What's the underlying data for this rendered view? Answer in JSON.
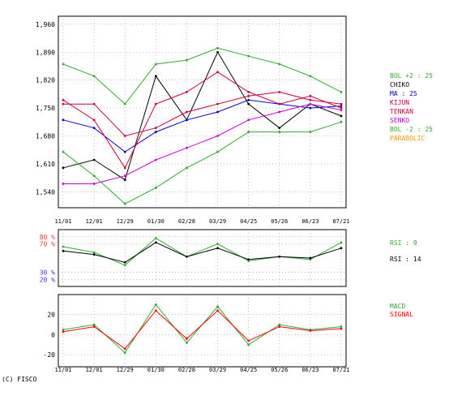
{
  "footer": {
    "copyright": "(C) FISCO"
  },
  "chart_data": [
    {
      "type": "line",
      "panel": "price",
      "ylim": [
        1500,
        1980
      ],
      "yticks": [
        1540,
        1610,
        1680,
        1750,
        1820,
        1890,
        1960
      ],
      "ytick_labels": [
        "1,540",
        "1,610",
        "1,680",
        "1,750",
        "1,820",
        "1,890",
        "1,960"
      ],
      "xtick_labels": [
        "11/01",
        "12/01",
        "12/29",
        "01/30",
        "02/28",
        "03/29",
        "04/25",
        "05/26",
        "06/23",
        "07/21"
      ],
      "grid": true,
      "legend": [
        {
          "label": "BOL +2 : 25",
          "color": "#33aa33"
        },
        {
          "label": "CHIKO",
          "color": "#000000"
        },
        {
          "label": "MA : 25",
          "color": "#0000cc"
        },
        {
          "label": "KIJUN",
          "color": "#cc0033"
        },
        {
          "label": "TENKAN",
          "color": "#cc0033"
        },
        {
          "label": "SENKO",
          "color": "#cc00cc"
        },
        {
          "label": "BOL -2 : 25",
          "color": "#33aa33"
        },
        {
          "label": "PARABOLIC",
          "color": "#ff9900"
        }
      ],
      "x": [
        "11/01",
        "12/01",
        "12/29",
        "01/30",
        "02/28",
        "03/29",
        "04/25",
        "05/26",
        "06/23",
        "07/21"
      ],
      "series": [
        {
          "name": "CHIKO",
          "color": "#000000",
          "values": [
            1600,
            1620,
            1570,
            1830,
            1720,
            1890,
            1760,
            1700,
            1760,
            1730
          ]
        },
        {
          "name": "MA : 25",
          "color": "#0000cc",
          "values": [
            1720,
            1700,
            1640,
            1690,
            1720,
            1740,
            1770,
            1760,
            1750,
            1755
          ]
        },
        {
          "name": "KIJUN",
          "color": "#cc0033",
          "values": [
            1760,
            1760,
            1680,
            1700,
            1740,
            1760,
            1780,
            1790,
            1770,
            1760
          ]
        },
        {
          "name": "TENKAN",
          "color": "#cc0033",
          "values": [
            1770,
            1720,
            1600,
            1760,
            1790,
            1840,
            1790,
            1760,
            1780,
            1750
          ]
        },
        {
          "name": "SENKO",
          "color": "#cc00cc",
          "values": [
            1560,
            1560,
            1580,
            1620,
            1650,
            1680,
            1720,
            1740,
            1760,
            1745
          ]
        },
        {
          "name": "BOL +2 : 25",
          "color": "#33aa33",
          "values": [
            1860,
            1830,
            1760,
            1860,
            1870,
            1900,
            1880,
            1860,
            1830,
            1790
          ]
        },
        {
          "name": "BOL -2 : 25",
          "color": "#33aa33",
          "values": [
            1640,
            1580,
            1510,
            1550,
            1600,
            1640,
            1690,
            1690,
            1690,
            1715
          ]
        }
      ]
    },
    {
      "type": "line",
      "panel": "rsi",
      "ylim": [
        10,
        90
      ],
      "yticks": [
        20,
        30,
        70,
        80
      ],
      "ytick_labels": [
        "20 %",
        "30 %",
        "70 %",
        "80 %"
      ],
      "grid": true,
      "series": [
        {
          "name": "RSI : 9",
          "color": "#33aa33",
          "values": [
            66,
            58,
            40,
            78,
            52,
            70,
            46,
            52,
            48,
            72
          ]
        },
        {
          "name": "RSI : 14",
          "color": "#000000",
          "values": [
            60,
            55,
            44,
            72,
            52,
            64,
            48,
            52,
            50,
            64
          ]
        }
      ]
    },
    {
      "type": "line",
      "panel": "macd",
      "ylim": [
        -32,
        40
      ],
      "yticks": [
        -20,
        0,
        20
      ],
      "ytick_labels": [
        "-20",
        "0",
        "20"
      ],
      "grid": true,
      "series": [
        {
          "name": "MACD",
          "color": "#33aa33",
          "values": [
            5,
            10,
            -18,
            30,
            -8,
            28,
            -10,
            10,
            5,
            8
          ]
        },
        {
          "name": "SIGNAL",
          "color": "#ff0000",
          "values": [
            3,
            8,
            -14,
            24,
            -4,
            24,
            -6,
            8,
            4,
            6
          ]
        }
      ]
    }
  ]
}
